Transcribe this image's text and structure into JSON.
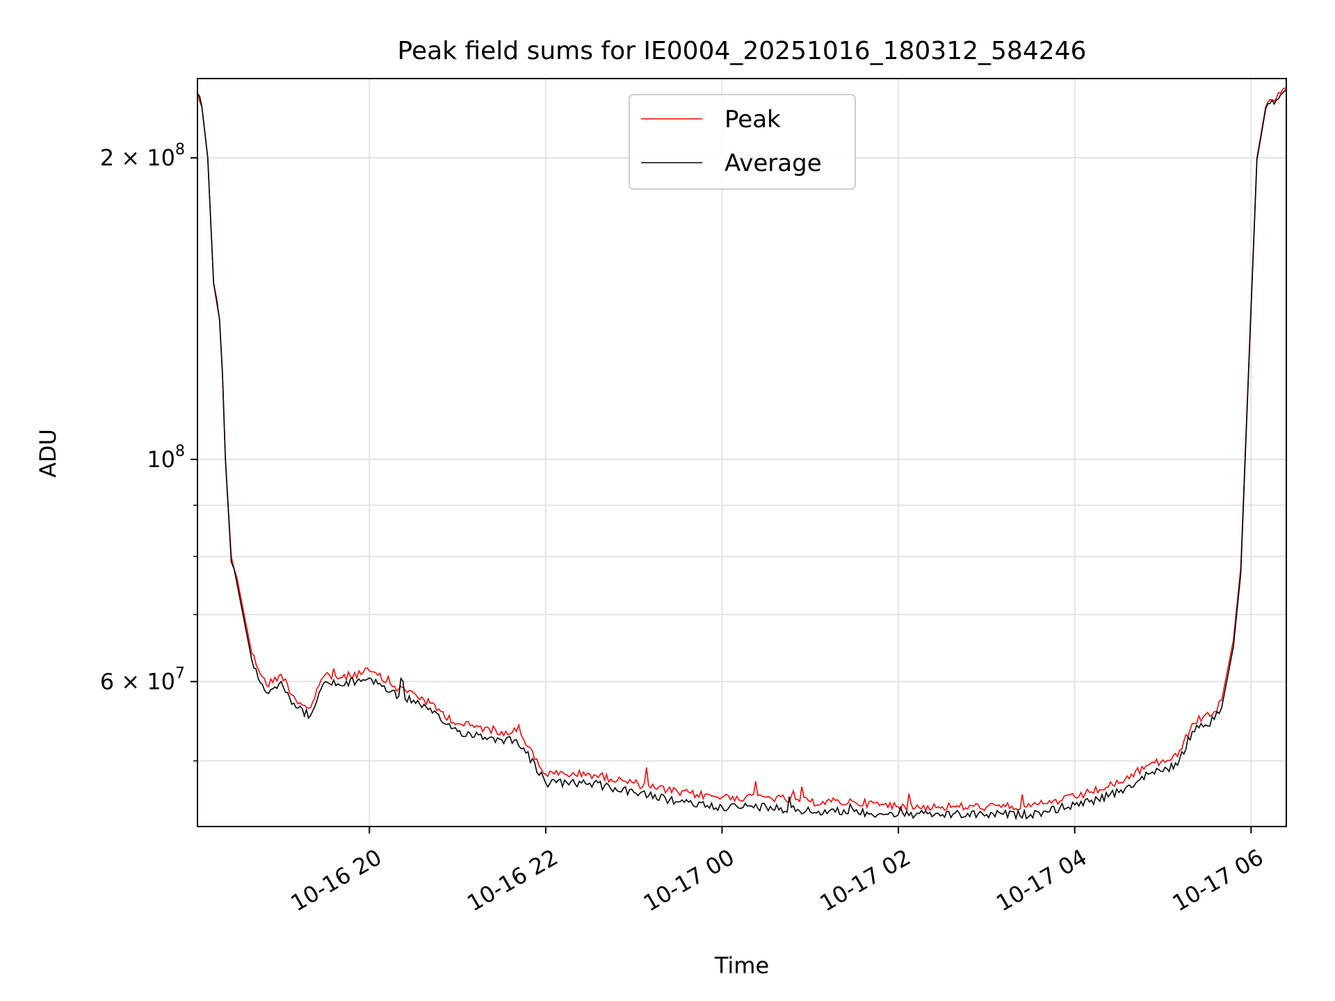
{
  "chart_data": {
    "type": "line",
    "title": "Peak field sums for IE0004_20251016_180312_584246",
    "xlabel": "Time",
    "ylabel": "ADU",
    "yscale": "log",
    "grid": true,
    "legend_position": "top-center",
    "xlim": [
      "2025-10-16 18:03",
      "2025-10-17 06:24"
    ],
    "ylim": [
      43000000,
      240000000
    ],
    "x_ticks": [
      {
        "value": "2025-10-16 20:00",
        "label": "10-16 20"
      },
      {
        "value": "2025-10-16 22:00",
        "label": "10-16 22"
      },
      {
        "value": "2025-10-17 00:00",
        "label": "10-17 00"
      },
      {
        "value": "2025-10-17 02:00",
        "label": "10-17 02"
      },
      {
        "value": "2025-10-17 04:00",
        "label": "10-17 04"
      },
      {
        "value": "2025-10-17 06:00",
        "label": "10-17 06"
      }
    ],
    "y_major_ticks": [
      {
        "value": 200000000,
        "base": "2 × 10",
        "exp": "8"
      },
      {
        "value": 100000000,
        "base": "10",
        "exp": "8"
      },
      {
        "value": 60000000,
        "base": "6 × 10",
        "exp": "7"
      }
    ],
    "y_minor_ticks": [
      50000000,
      70000000,
      80000000,
      90000000
    ],
    "x": [
      "2025-10-16 18:03",
      "2025-10-16 18:06",
      "2025-10-16 18:10",
      "2025-10-16 18:14",
      "2025-10-16 18:18",
      "2025-10-16 18:20",
      "2025-10-16 18:22",
      "2025-10-16 18:26",
      "2025-10-16 18:30",
      "2025-10-16 18:40",
      "2025-10-16 18:50",
      "2025-10-16 19:00",
      "2025-10-16 19:10",
      "2025-10-16 19:20",
      "2025-10-16 19:30",
      "2025-10-16 19:40",
      "2025-10-16 20:00",
      "2025-10-16 20:20",
      "2025-10-16 20:30",
      "2025-10-16 21:00",
      "2025-10-16 21:30",
      "2025-10-16 21:40",
      "2025-10-16 21:45",
      "2025-10-16 22:00",
      "2025-10-16 22:30",
      "2025-10-16 23:00",
      "2025-10-16 23:30",
      "2025-10-17 00:00",
      "2025-10-17 00:30",
      "2025-10-17 01:00",
      "2025-10-17 01:30",
      "2025-10-17 02:00",
      "2025-10-17 02:30",
      "2025-10-17 03:00",
      "2025-10-17 03:30",
      "2025-10-17 04:00",
      "2025-10-17 04:10",
      "2025-10-17 04:30",
      "2025-10-17 04:50",
      "2025-10-17 05:10",
      "2025-10-17 05:20",
      "2025-10-17 05:35",
      "2025-10-17 05:40",
      "2025-10-17 05:48",
      "2025-10-17 05:53",
      "2025-10-17 05:58",
      "2025-10-17 06:04",
      "2025-10-17 06:10",
      "2025-10-17 06:20",
      "2025-10-17 06:24"
    ],
    "series": [
      {
        "name": "Peak",
        "color": "#ff0000",
        "values": [
          232000000,
          225000000,
          200000000,
          150000000,
          138000000,
          122000000,
          100000000,
          80000000,
          76000000,
          64000000,
          59500000,
          61000000,
          57500000,
          56500000,
          61000000,
          60500000,
          61500000,
          59000000,
          58500000,
          54500000,
          53500000,
          53500000,
          52500000,
          48500000,
          48500000,
          47500000,
          46500000,
          46000000,
          46000000,
          45500000,
          45500000,
          45000000,
          45000000,
          45000000,
          45000000,
          46000000,
          46500000,
          47500000,
          49500000,
          50500000,
          54500000,
          56000000,
          57500000,
          66000000,
          78000000,
          120000000,
          200000000,
          225000000,
          232000000,
          235000000
        ]
      },
      {
        "name": "Average",
        "color": "#000000",
        "values": [
          232000000,
          225000000,
          200000000,
          150000000,
          138000000,
          122000000,
          100000000,
          79000000,
          75000000,
          63000000,
          58500000,
          60000000,
          56500000,
          55500000,
          60000000,
          59500000,
          60500000,
          58000000,
          57500000,
          53500000,
          52500000,
          52500000,
          51500000,
          47500000,
          47500000,
          46500000,
          45500000,
          45000000,
          45000000,
          44500000,
          44500000,
          44200000,
          44200000,
          44200000,
          44200000,
          45200000,
          45500000,
          46500000,
          48500000,
          49500000,
          53500000,
          55000000,
          56500000,
          65000000,
          77000000,
          119000000,
          199000000,
          224000000,
          231000000,
          234000000
        ]
      }
    ]
  }
}
